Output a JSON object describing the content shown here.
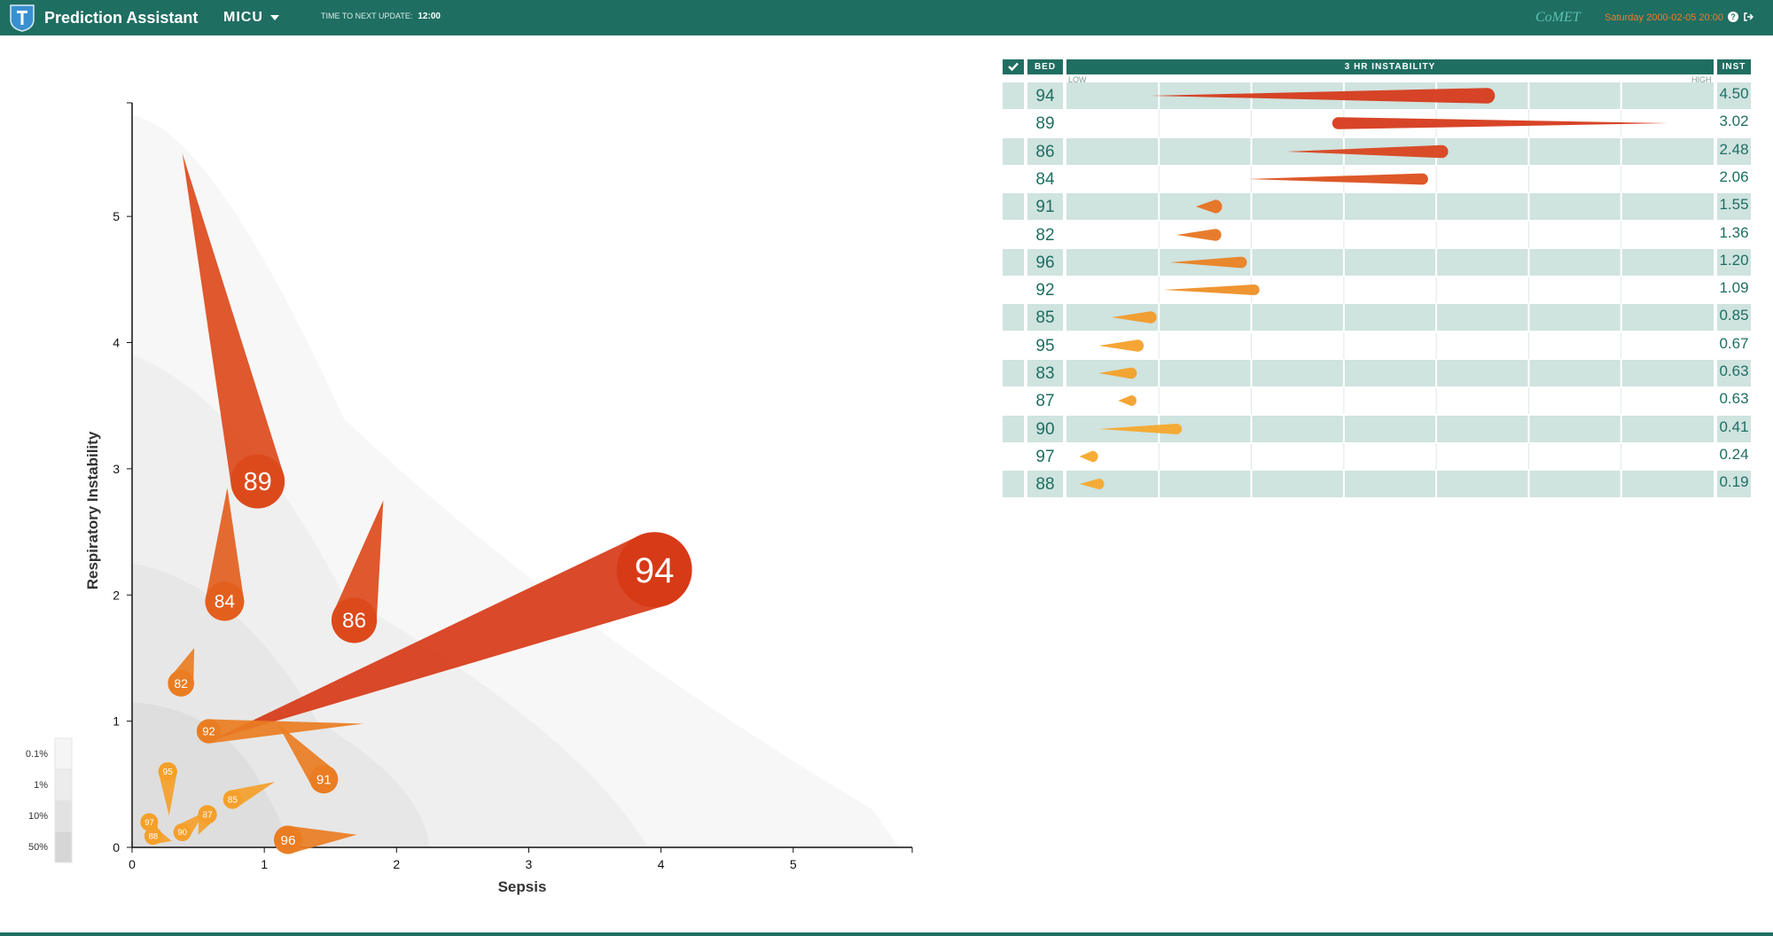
{
  "header": {
    "app_title": "Prediction Assistant",
    "unit": "MICU",
    "next_update_label": "TIME TO NEXT UPDATE:",
    "next_update_value": "12:00",
    "brand": "CoMET",
    "datetime": "Saturday 2000-02-05 20:00",
    "colors": {
      "bar": "#1f6e62",
      "accent": "#f07b28"
    }
  },
  "chart_data": {
    "type": "scatter",
    "xlabel": "Sepsis",
    "ylabel": "Respiratory Instability",
    "xlim": [
      0,
      5.9
    ],
    "ylim": [
      0,
      5.9
    ],
    "xticks": [
      "0",
      "1",
      "2",
      "3",
      "4",
      "5"
    ],
    "yticks": [
      "0",
      "1",
      "2",
      "3",
      "4",
      "5"
    ],
    "legend": [
      "0.1%",
      "1%",
      "10%",
      "50%"
    ],
    "legend_placement": "bottom-left",
    "beds": [
      {
        "bed": "94",
        "x": 3.95,
        "y": 2.2,
        "tail_x": 0.6,
        "tail_y": 0.85,
        "size": 3.2
      },
      {
        "bed": "89",
        "x": 0.95,
        "y": 2.9,
        "tail_x": 0.38,
        "tail_y": 5.5,
        "size": 2.2
      },
      {
        "bed": "86",
        "x": 1.68,
        "y": 1.8,
        "tail_x": 1.9,
        "tail_y": 2.75,
        "size": 1.8
      },
      {
        "bed": "84",
        "x": 0.7,
        "y": 1.95,
        "tail_x": 0.72,
        "tail_y": 2.85,
        "size": 1.5
      },
      {
        "bed": "82",
        "x": 0.37,
        "y": 1.3,
        "tail_x": 0.47,
        "tail_y": 1.58,
        "size": 0.9
      },
      {
        "bed": "92",
        "x": 0.58,
        "y": 0.92,
        "tail_x": 1.75,
        "tail_y": 0.98,
        "size": 0.8
      },
      {
        "bed": "91",
        "x": 1.45,
        "y": 0.54,
        "tail_x": 1.1,
        "tail_y": 0.98,
        "size": 1.0
      },
      {
        "bed": "95",
        "x": 0.27,
        "y": 0.6,
        "tail_x": 0.28,
        "tail_y": 0.25,
        "size": 0.55
      },
      {
        "bed": "87",
        "x": 0.57,
        "y": 0.26,
        "tail_x": 0.5,
        "tail_y": 0.1,
        "size": 0.55
      },
      {
        "bed": "85",
        "x": 0.76,
        "y": 0.38,
        "tail_x": 1.08,
        "tail_y": 0.52,
        "size": 0.55
      },
      {
        "bed": "97",
        "x": 0.13,
        "y": 0.2,
        "tail_x": 0.2,
        "tail_y": 0.12,
        "size": 0.5
      },
      {
        "bed": "88",
        "x": 0.16,
        "y": 0.09,
        "tail_x": 0.3,
        "tail_y": 0.05,
        "size": 0.5
      },
      {
        "bed": "90",
        "x": 0.38,
        "y": 0.12,
        "tail_x": 0.55,
        "tail_y": 0.28,
        "size": 0.5
      },
      {
        "bed": "96",
        "x": 1.18,
        "y": 0.06,
        "tail_x": 1.7,
        "tail_y": 0.1,
        "size": 1.0
      }
    ]
  },
  "table": {
    "headers": {
      "bed": "BED",
      "instability": "3 HR INSTABILITY",
      "inst": "INST"
    },
    "low_label": "LOW",
    "high_label": "HIGH",
    "rows": [
      {
        "bed": "94",
        "inst": "4.50",
        "bar_start": 0.13,
        "bar_end": 0.65,
        "thick": 0.85,
        "color": "#d63a1b"
      },
      {
        "bed": "89",
        "inst": "3.02",
        "bar_start": 0.42,
        "bar_end": 0.93,
        "thick": 0.6,
        "color": "#d63a1b"
      },
      {
        "bed": "86",
        "inst": "2.48",
        "bar_start": 0.34,
        "bar_end": 0.58,
        "thick": 0.65,
        "color": "#d8451d"
      },
      {
        "bed": "84",
        "inst": "2.06",
        "bar_start": 0.28,
        "bar_end": 0.55,
        "thick": 0.55,
        "color": "#dc4f1e"
      },
      {
        "bed": "91",
        "inst": "1.55",
        "bar_start": 0.2,
        "bar_end": 0.23,
        "thick": 0.7,
        "color": "#e6711f"
      },
      {
        "bed": "82",
        "inst": "1.36",
        "bar_start": 0.17,
        "bar_end": 0.23,
        "thick": 0.6,
        "color": "#e77522"
      },
      {
        "bed": "96",
        "inst": "1.20",
        "bar_start": 0.16,
        "bar_end": 0.27,
        "thick": 0.55,
        "color": "#ea8223"
      },
      {
        "bed": "92",
        "inst": "1.09",
        "bar_start": 0.15,
        "bar_end": 0.29,
        "thick": 0.5,
        "color": "#ee8f26"
      },
      {
        "bed": "85",
        "inst": "0.85",
        "bar_start": 0.07,
        "bar_end": 0.13,
        "thick": 0.6,
        "color": "#f29a28"
      },
      {
        "bed": "95",
        "inst": "0.67",
        "bar_start": 0.05,
        "bar_end": 0.11,
        "thick": 0.6,
        "color": "#f3a02a"
      },
      {
        "bed": "83",
        "inst": "0.63",
        "bar_start": 0.05,
        "bar_end": 0.1,
        "thick": 0.55,
        "color": "#f3a02a"
      },
      {
        "bed": "87",
        "inst": "0.63",
        "bar_start": 0.08,
        "bar_end": 0.1,
        "thick": 0.5,
        "color": "#f3a02a"
      },
      {
        "bed": "90",
        "inst": "0.41",
        "bar_start": 0.05,
        "bar_end": 0.17,
        "thick": 0.5,
        "color": "#f5a82c"
      },
      {
        "bed": "97",
        "inst": "0.24",
        "bar_start": 0.02,
        "bar_end": 0.04,
        "thick": 0.55,
        "color": "#f5a82c"
      },
      {
        "bed": "88",
        "inst": "0.19",
        "bar_start": 0.02,
        "bar_end": 0.05,
        "thick": 0.5,
        "color": "#f5a82c"
      }
    ]
  }
}
